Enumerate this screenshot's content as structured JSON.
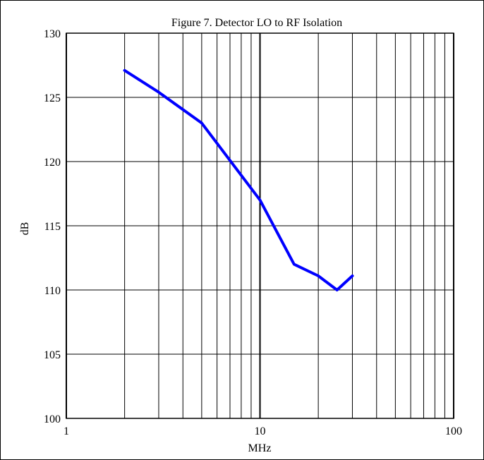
{
  "chart_data": {
    "type": "line",
    "title": "Figure 7. Detector LO to RF Isolation",
    "xlabel": "MHz",
    "ylabel": "dB",
    "xscale": "log",
    "xlim": [
      1,
      100
    ],
    "ylim": [
      100,
      130
    ],
    "grid": true,
    "x_ticks": [
      "1",
      "10",
      "100"
    ],
    "y_ticks": [
      "100",
      "105",
      "110",
      "115",
      "120",
      "125",
      "130"
    ],
    "series": [
      {
        "x": [
          2,
          3,
          5,
          10,
          15,
          20,
          25,
          30
        ],
        "y": [
          127.1,
          125.4,
          123,
          117,
          112,
          111.1,
          110,
          111.1
        ],
        "color": "#0000ff"
      }
    ]
  }
}
